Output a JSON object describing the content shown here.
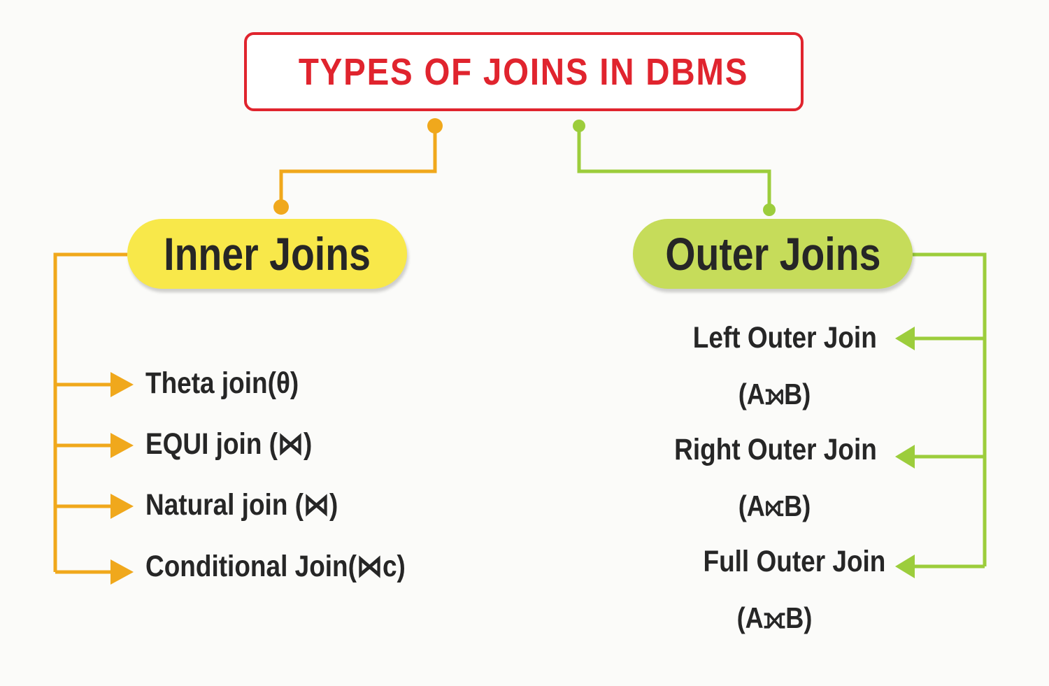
{
  "title": "TYPES OF JOINS IN DBMS",
  "colors": {
    "title": "#e0242e",
    "inner_branch": "#f0a81c",
    "outer_branch": "#9ccd3c",
    "inner_pill": "#f8e84a",
    "outer_pill": "#c6dc5a",
    "text": "#262626"
  },
  "inner": {
    "label": "Inner Joins",
    "items": [
      "Theta join(θ)",
      "EQUI join (⋈)",
      "Natural join (⋈)",
      "Conditional Join(⋈c)"
    ]
  },
  "outer": {
    "label": "Outer Joins",
    "items": [
      {
        "label": "Left Outer Join",
        "notation": "(A⟕B)"
      },
      {
        "label": "Right Outer Join",
        "notation": "(A⟖B)"
      },
      {
        "label": "Full Outer Join",
        "notation": "(A⟗B)"
      }
    ]
  }
}
